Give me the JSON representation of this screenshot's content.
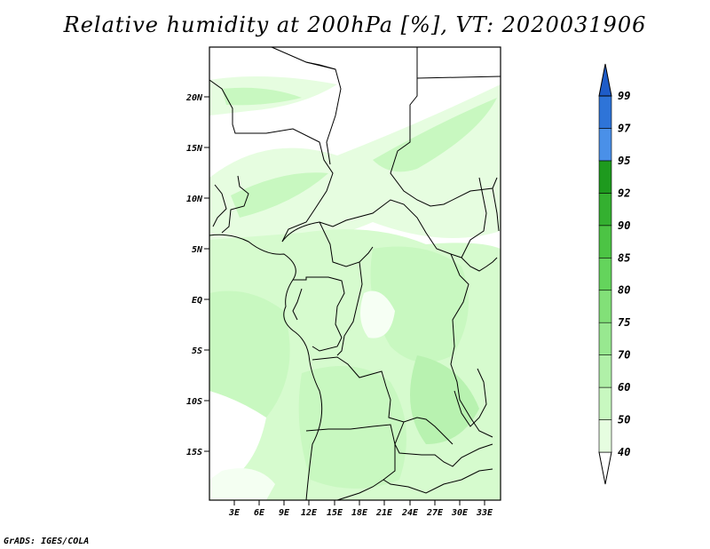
{
  "title": "Relative humidity at 200hPa [%], VT: 2020031906",
  "footer": "GrADS: IGES/COLA",
  "lat_labels": [
    "20N",
    "15N",
    "10N",
    "5N",
    "EQ",
    "5S",
    "10S",
    "15S"
  ],
  "lon_labels": [
    "3E",
    "6E",
    "9E",
    "12E",
    "15E",
    "18E",
    "21E",
    "24E",
    "27E",
    "30E",
    "33E"
  ],
  "colorbar": {
    "labels": [
      "40",
      "50",
      "60",
      "70",
      "75",
      "80",
      "85",
      "90",
      "92",
      "95",
      "97",
      "99"
    ],
    "colors": [
      "#e6fde0",
      "#c8f8c0",
      "#b0f0a8",
      "#98e890",
      "#82e078",
      "#64d45c",
      "#4cc444",
      "#34b030",
      "#1e9a1e",
      "#4a90e8",
      "#2e74d8",
      "#1e5cc8"
    ]
  },
  "colors": {
    "land_low": "#e6fde0",
    "land_mid": "#c8f8c0",
    "land_hi": "#b0f0a8"
  }
}
